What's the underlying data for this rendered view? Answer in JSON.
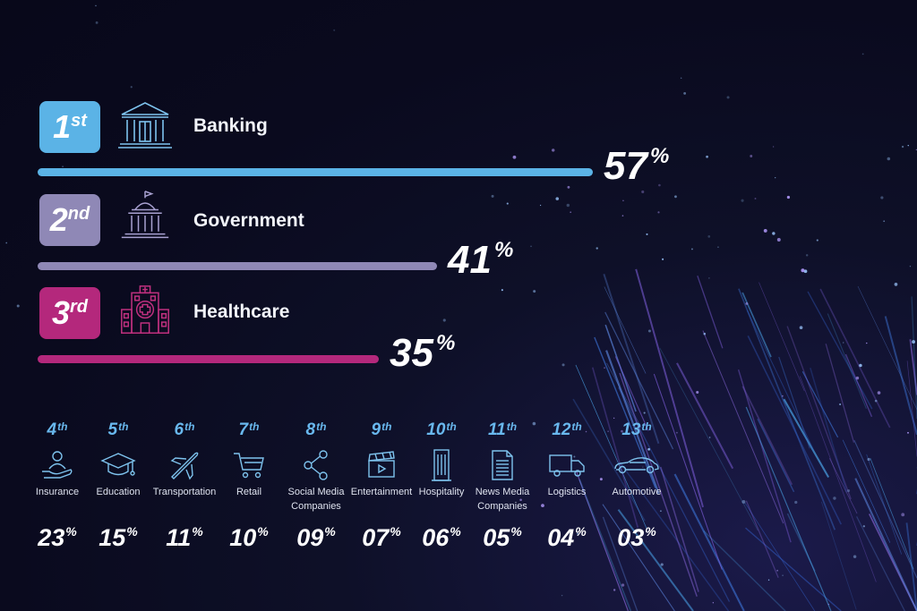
{
  "colors": {
    "first": "#5bb3e6",
    "second": "#8f88b6",
    "third": "#b4287c",
    "icon_line": "#7ec3ee",
    "rank_text": "#69b8ee"
  },
  "chart_data": {
    "type": "bar",
    "unit": "%",
    "top3": [
      {
        "rank_num": "1",
        "rank_suffix": "st",
        "label": "Banking",
        "value": 57,
        "value_text": "57",
        "icon": "bank-icon",
        "color": "#5bb3e6"
      },
      {
        "rank_num": "2",
        "rank_suffix": "nd",
        "label": "Government",
        "value": 41,
        "value_text": "41",
        "icon": "government-building-icon",
        "color": "#8f88b6"
      },
      {
        "rank_num": "3",
        "rank_suffix": "rd",
        "label": "Healthcare",
        "value": 35,
        "value_text": "35",
        "icon": "hospital-icon",
        "color": "#b4287c"
      }
    ],
    "others": [
      {
        "rank_num": "4",
        "rank_suffix": "th",
        "label": "Insurance",
        "value": 23,
        "value_text": "23",
        "icon": "insurance-hand-icon"
      },
      {
        "rank_num": "5",
        "rank_suffix": "th",
        "label": "Education",
        "value": 15,
        "value_text": "15",
        "icon": "graduation-cap-icon"
      },
      {
        "rank_num": "6",
        "rank_suffix": "th",
        "label": "Transportation",
        "value": 11,
        "value_text": "11",
        "icon": "airplane-icon"
      },
      {
        "rank_num": "7",
        "rank_suffix": "th",
        "label": "Retail",
        "value": 10,
        "value_text": "10",
        "icon": "shopping-cart-icon"
      },
      {
        "rank_num": "8",
        "rank_suffix": "th",
        "label": "Social Media Companies",
        "value": 9,
        "value_text": "09",
        "icon": "share-network-icon"
      },
      {
        "rank_num": "9",
        "rank_suffix": "th",
        "label": "Entertainment",
        "value": 7,
        "value_text": "07",
        "icon": "clapperboard-icon"
      },
      {
        "rank_num": "10",
        "rank_suffix": "th",
        "label": "Hospitality",
        "value": 6,
        "value_text": "06",
        "icon": "hotel-building-icon"
      },
      {
        "rank_num": "11",
        "rank_suffix": "th",
        "label": "News Media Companies",
        "value": 5,
        "value_text": "05",
        "icon": "newspaper-icon"
      },
      {
        "rank_num": "12",
        "rank_suffix": "th",
        "label": "Logistics",
        "value": 4,
        "value_text": "04",
        "icon": "delivery-truck-icon"
      },
      {
        "rank_num": "13",
        "rank_suffix": "th",
        "label": "Automotive",
        "value": 3,
        "value_text": "03",
        "icon": "car-icon"
      }
    ]
  }
}
